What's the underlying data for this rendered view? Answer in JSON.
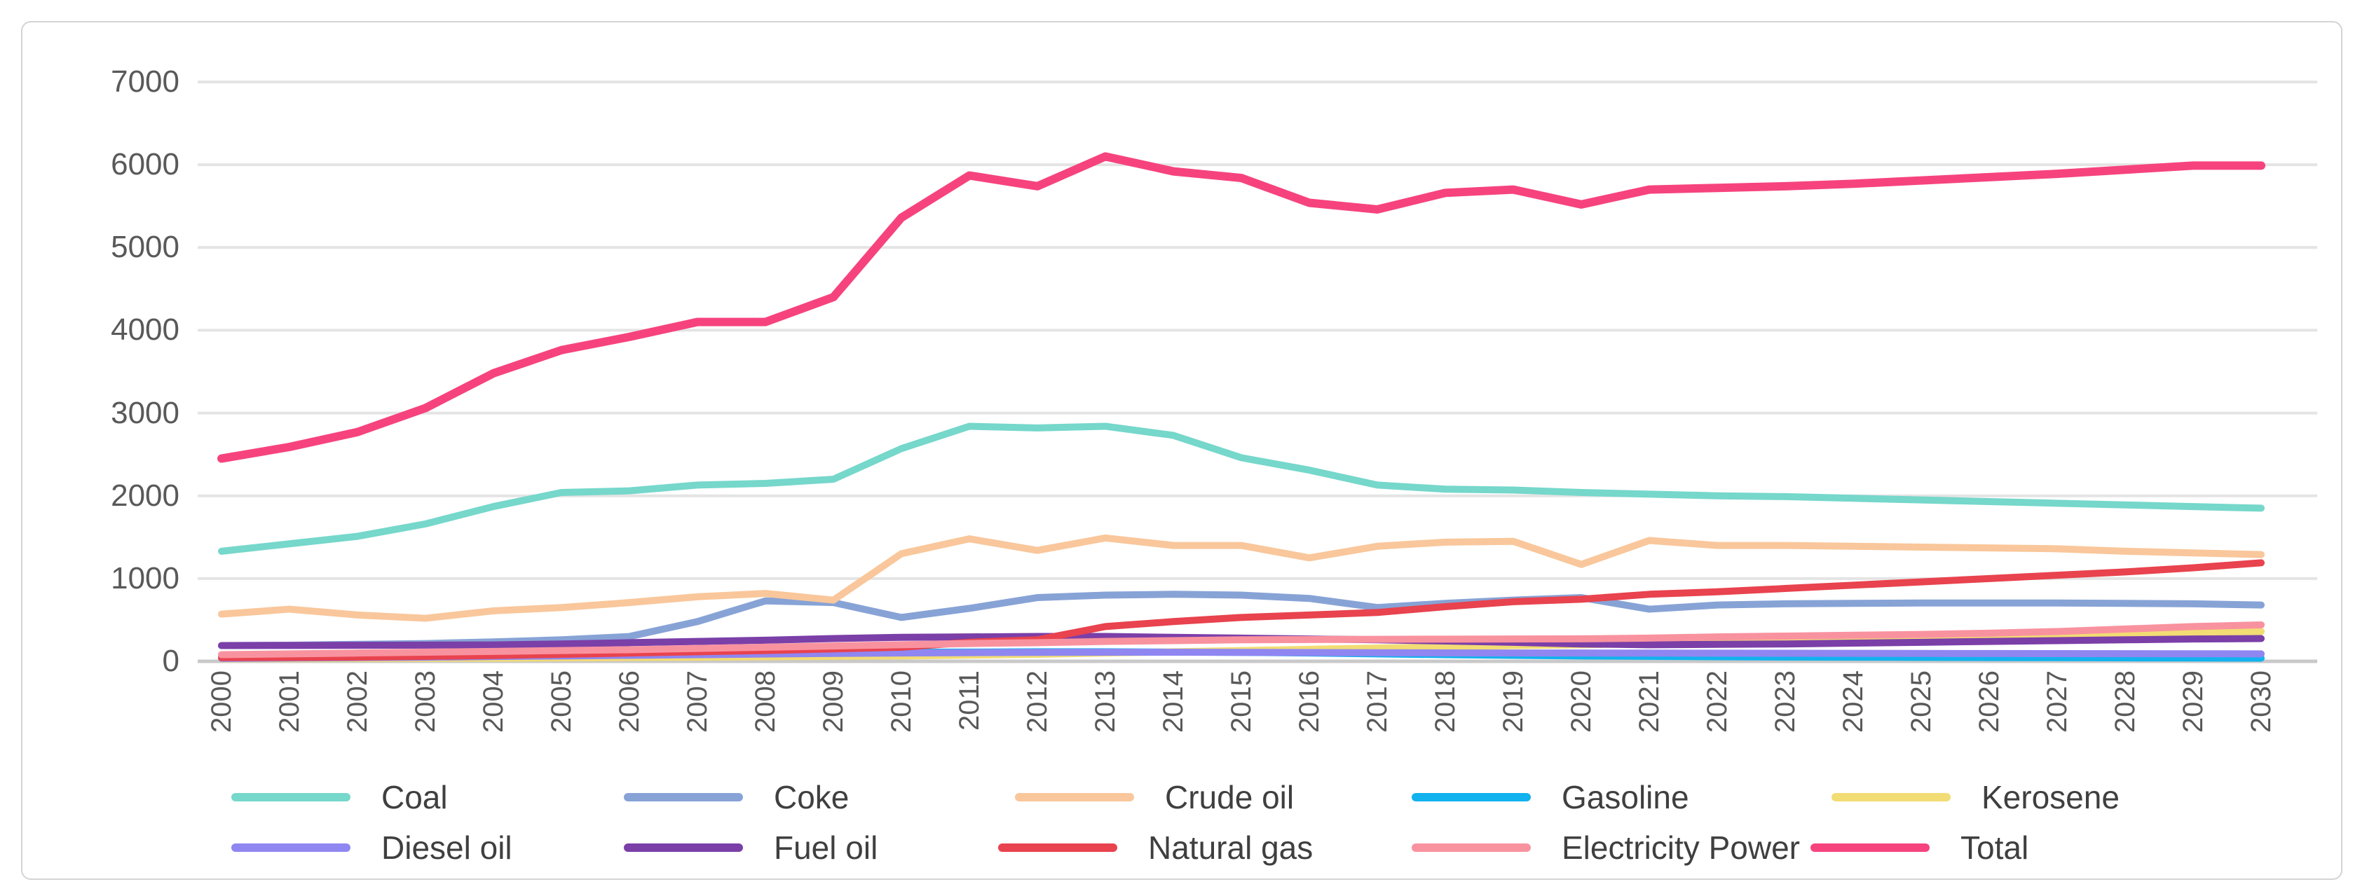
{
  "chart_data": {
    "type": "line",
    "title": "",
    "xlabel": "",
    "ylabel": "",
    "x": [
      2000,
      2001,
      2002,
      2003,
      2004,
      2005,
      2006,
      2007,
      2008,
      2009,
      2010,
      2011,
      2012,
      2013,
      2014,
      2015,
      2016,
      2017,
      2018,
      2019,
      2020,
      2021,
      2022,
      2023,
      2024,
      2025,
      2026,
      2027,
      2028,
      2029,
      2030
    ],
    "ylim": [
      0,
      7000
    ],
    "ytick_step": 1000,
    "yticks": [
      0,
      1000,
      2000,
      3000,
      4000,
      5000,
      6000,
      7000
    ],
    "grid": true,
    "legend_position": "bottom",
    "series": [
      {
        "name": "Coal",
        "color": "#76D7CB",
        "values": [
          1330,
          1420,
          1510,
          1660,
          1870,
          2040,
          2060,
          2130,
          2150,
          2200,
          2570,
          2840,
          2820,
          2840,
          2730,
          2460,
          2310,
          2130,
          2080,
          2070,
          2040,
          2020,
          2000,
          1990,
          1970,
          1950,
          1930,
          1910,
          1890,
          1870,
          1850
        ]
      },
      {
        "name": "Coke",
        "color": "#87A3D6",
        "values": [
          190,
          195,
          205,
          215,
          235,
          260,
          300,
          480,
          730,
          710,
          530,
          640,
          770,
          800,
          810,
          800,
          760,
          650,
          700,
          740,
          770,
          630,
          680,
          695,
          700,
          705,
          705,
          705,
          700,
          695,
          680
        ]
      },
      {
        "name": "Crude oil",
        "color": "#F9C79B",
        "values": [
          570,
          630,
          560,
          520,
          610,
          650,
          710,
          780,
          820,
          740,
          1300,
          1480,
          1340,
          1490,
          1400,
          1400,
          1250,
          1390,
          1440,
          1450,
          1170,
          1460,
          1400,
          1400,
          1390,
          1380,
          1370,
          1360,
          1330,
          1310,
          1290
        ]
      },
      {
        "name": "Gasoline",
        "color": "#12B2EE",
        "values": [
          55,
          60,
          65,
          70,
          75,
          80,
          90,
          95,
          100,
          105,
          110,
          112,
          115,
          115,
          112,
          108,
          100,
          90,
          80,
          72,
          65,
          60,
          55,
          52,
          50,
          48,
          46,
          44,
          42,
          40,
          38
        ]
      },
      {
        "name": "Kerosene",
        "color": "#F2DC74",
        "values": [
          30,
          32,
          34,
          36,
          38,
          42,
          46,
          50,
          55,
          60,
          65,
          75,
          85,
          100,
          115,
          130,
          145,
          160,
          175,
          190,
          200,
          215,
          235,
          255,
          275,
          295,
          310,
          325,
          340,
          350,
          360
        ]
      },
      {
        "name": "Diesel oil",
        "color": "#8F86F2",
        "values": [
          35,
          40,
          45,
          50,
          58,
          65,
          72,
          80,
          88,
          95,
          100,
          105,
          108,
          110,
          110,
          108,
          106,
          104,
          102,
          100,
          100,
          99,
          98,
          97,
          96,
          95,
          94,
          93,
          92,
          91,
          90
        ]
      },
      {
        "name": "Fuel oil",
        "color": "#7B3FA8",
        "values": [
          190,
          192,
          194,
          196,
          198,
          210,
          225,
          240,
          255,
          275,
          290,
          295,
          300,
          300,
          290,
          280,
          270,
          260,
          245,
          230,
          210,
          200,
          205,
          210,
          220,
          230,
          240,
          250,
          260,
          270,
          275
        ]
      },
      {
        "name": "Natural gas",
        "color": "#E8434E",
        "values": [
          45,
          48,
          52,
          60,
          70,
          85,
          100,
          115,
          130,
          150,
          170,
          230,
          260,
          420,
          480,
          530,
          560,
          590,
          660,
          720,
          750,
          810,
          840,
          880,
          920,
          960,
          1000,
          1040,
          1080,
          1130,
          1190
        ]
      },
      {
        "name": "Electricity Power",
        "color": "#F9929F",
        "values": [
          80,
          90,
          100,
          110,
          120,
          130,
          140,
          155,
          170,
          185,
          200,
          215,
          225,
          240,
          250,
          260,
          263,
          266,
          268,
          270,
          272,
          280,
          295,
          305,
          315,
          325,
          340,
          360,
          390,
          420,
          440
        ]
      },
      {
        "name": "Total",
        "color": "#F6437E",
        "values": [
          2450,
          2590,
          2770,
          3060,
          3480,
          3760,
          3920,
          4100,
          4100,
          4400,
          5360,
          5870,
          5740,
          6100,
          5920,
          5840,
          5540,
          5460,
          5660,
          5700,
          5520,
          5700,
          5720,
          5740,
          5770,
          5810,
          5850,
          5890,
          5940,
          5990,
          5990
        ]
      }
    ]
  },
  "colors": {
    "grid": "#E4E4E4",
    "axis_line": "#C9C9C9",
    "axis_text": "#595959",
    "legend_text": "#3F3F3F",
    "frame_border": "#D4D4D4",
    "background": "#FFFFFF"
  }
}
